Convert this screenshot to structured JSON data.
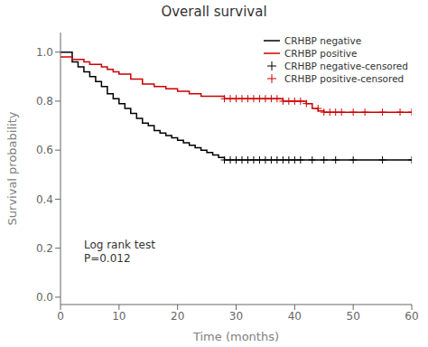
{
  "chart_data": {
    "type": "line",
    "title": "Overall survival",
    "x_label": "Time  (months)",
    "y_label": "Survival probability",
    "xlim": [
      0,
      60
    ],
    "ylim": [
      -0.03,
      1.08
    ],
    "xticks": [
      0,
      10,
      20,
      30,
      40,
      50,
      60
    ],
    "yticks": [
      {
        "value": 0.0,
        "label": "0.0"
      },
      0.2,
      0.4,
      0.6,
      0.8,
      {
        "value": 1.0,
        "label": "1.0"
      }
    ],
    "grid": false,
    "legend": "upper right",
    "annotations": [
      {
        "text": "Log rank test\nP=0.012",
        "x": 4,
        "y": 0.13
      }
    ],
    "series": [
      {
        "name": "CRHBP negative",
        "type": "line",
        "line_style": "step",
        "color": "#000000",
        "x": [
          0,
          2,
          3,
          4,
          5,
          6,
          7,
          8,
          9,
          10,
          11,
          12,
          13,
          14,
          15,
          16,
          17,
          18,
          19,
          20,
          21,
          22,
          23,
          24,
          25,
          26,
          27,
          28,
          29,
          30,
          60
        ],
        "values": [
          1.0,
          0.96,
          0.94,
          0.92,
          0.9,
          0.88,
          0.86,
          0.83,
          0.81,
          0.79,
          0.77,
          0.75,
          0.73,
          0.71,
          0.7,
          0.68,
          0.67,
          0.66,
          0.65,
          0.64,
          0.63,
          0.62,
          0.61,
          0.6,
          0.59,
          0.58,
          0.57,
          0.56,
          0.56,
          0.56,
          0.56
        ]
      },
      {
        "name": "CRHBP positive",
        "type": "line",
        "line_style": "step",
        "color": "#cc0000",
        "x": [
          0,
          1,
          2,
          3,
          4,
          5,
          6,
          7,
          8,
          9,
          10,
          12,
          14,
          16,
          18,
          20,
          22,
          24,
          26,
          27,
          28,
          29,
          30,
          38,
          40,
          42,
          43,
          44,
          45,
          46,
          60
        ],
        "values": [
          0.98,
          0.98,
          0.97,
          0.97,
          0.96,
          0.95,
          0.95,
          0.94,
          0.93,
          0.92,
          0.91,
          0.89,
          0.87,
          0.86,
          0.85,
          0.84,
          0.83,
          0.82,
          0.82,
          0.82,
          0.81,
          0.81,
          0.81,
          0.8,
          0.8,
          0.79,
          0.77,
          0.76,
          0.755,
          0.755,
          0.755
        ]
      },
      {
        "name": "CRHBP negative-censored",
        "type": "scatter",
        "marker": "+",
        "color": "#000000",
        "x": [
          28,
          29,
          30,
          31,
          32,
          33,
          34,
          35,
          36,
          37,
          38,
          39,
          40,
          41,
          43,
          45,
          47,
          50,
          55,
          60
        ],
        "values": [
          0.56,
          0.56,
          0.56,
          0.56,
          0.56,
          0.56,
          0.56,
          0.56,
          0.56,
          0.56,
          0.56,
          0.56,
          0.56,
          0.56,
          0.56,
          0.56,
          0.56,
          0.56,
          0.56,
          0.56
        ]
      },
      {
        "name": "CRHBP positive-censored",
        "type": "scatter",
        "marker": "+",
        "color": "#cc0000",
        "x": [
          28,
          29,
          30,
          31,
          32,
          33,
          34,
          35,
          36,
          37,
          38,
          39,
          40,
          41,
          42,
          44,
          45,
          46,
          47,
          48,
          50,
          52,
          55,
          58,
          60
        ],
        "values": [
          0.81,
          0.81,
          0.81,
          0.81,
          0.81,
          0.81,
          0.81,
          0.81,
          0.81,
          0.81,
          0.8,
          0.8,
          0.8,
          0.8,
          0.79,
          0.77,
          0.755,
          0.755,
          0.755,
          0.755,
          0.755,
          0.755,
          0.755,
          0.755,
          0.755
        ]
      }
    ]
  }
}
